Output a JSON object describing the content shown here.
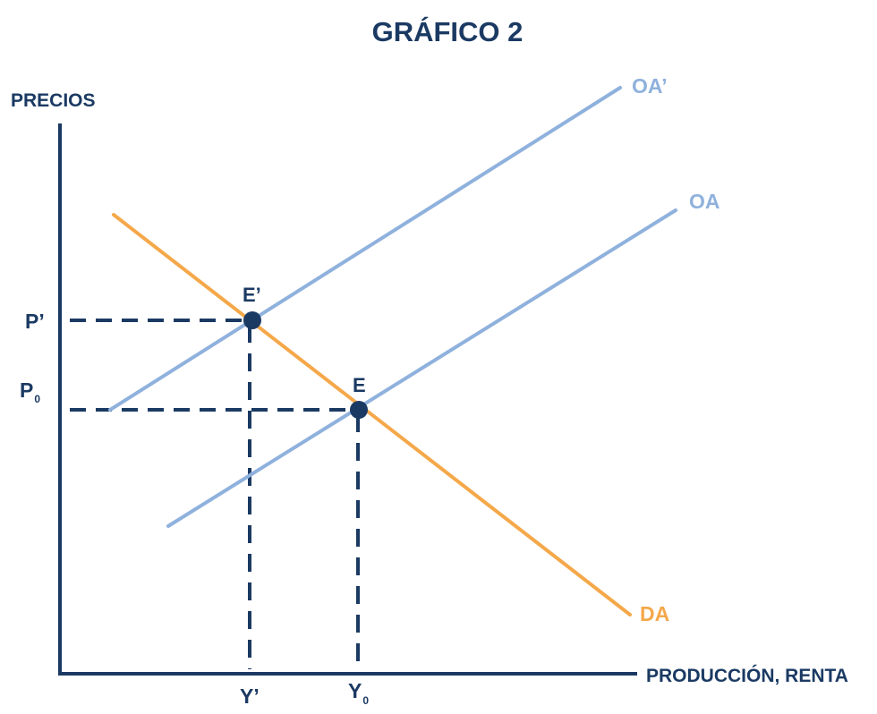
{
  "title": "GRÁFICO 2",
  "axes": {
    "y_label": "PRECIOS",
    "x_label": "PRODUCCIÓN, RENTA"
  },
  "curves": {
    "oa_prime": {
      "label": "OA’",
      "color": "#8FB1DD"
    },
    "oa": {
      "label": "OA",
      "color": "#8FB1DD"
    },
    "da": {
      "label": "DA",
      "color": "#F5A84A"
    }
  },
  "points": {
    "e_prime": {
      "label": "E’"
    },
    "e": {
      "label": "E"
    }
  },
  "price_levels": {
    "p_prime": {
      "base": "P’",
      "sub": ""
    },
    "p0": {
      "base": "P",
      "sub": "0"
    }
  },
  "output_levels": {
    "y_prime": {
      "base": "Y’",
      "sub": ""
    },
    "y0": {
      "base": "Y",
      "sub": "0"
    }
  },
  "colors": {
    "navy": "#1B3A63",
    "supply": "#8FB1DD",
    "demand": "#F5A84A"
  }
}
